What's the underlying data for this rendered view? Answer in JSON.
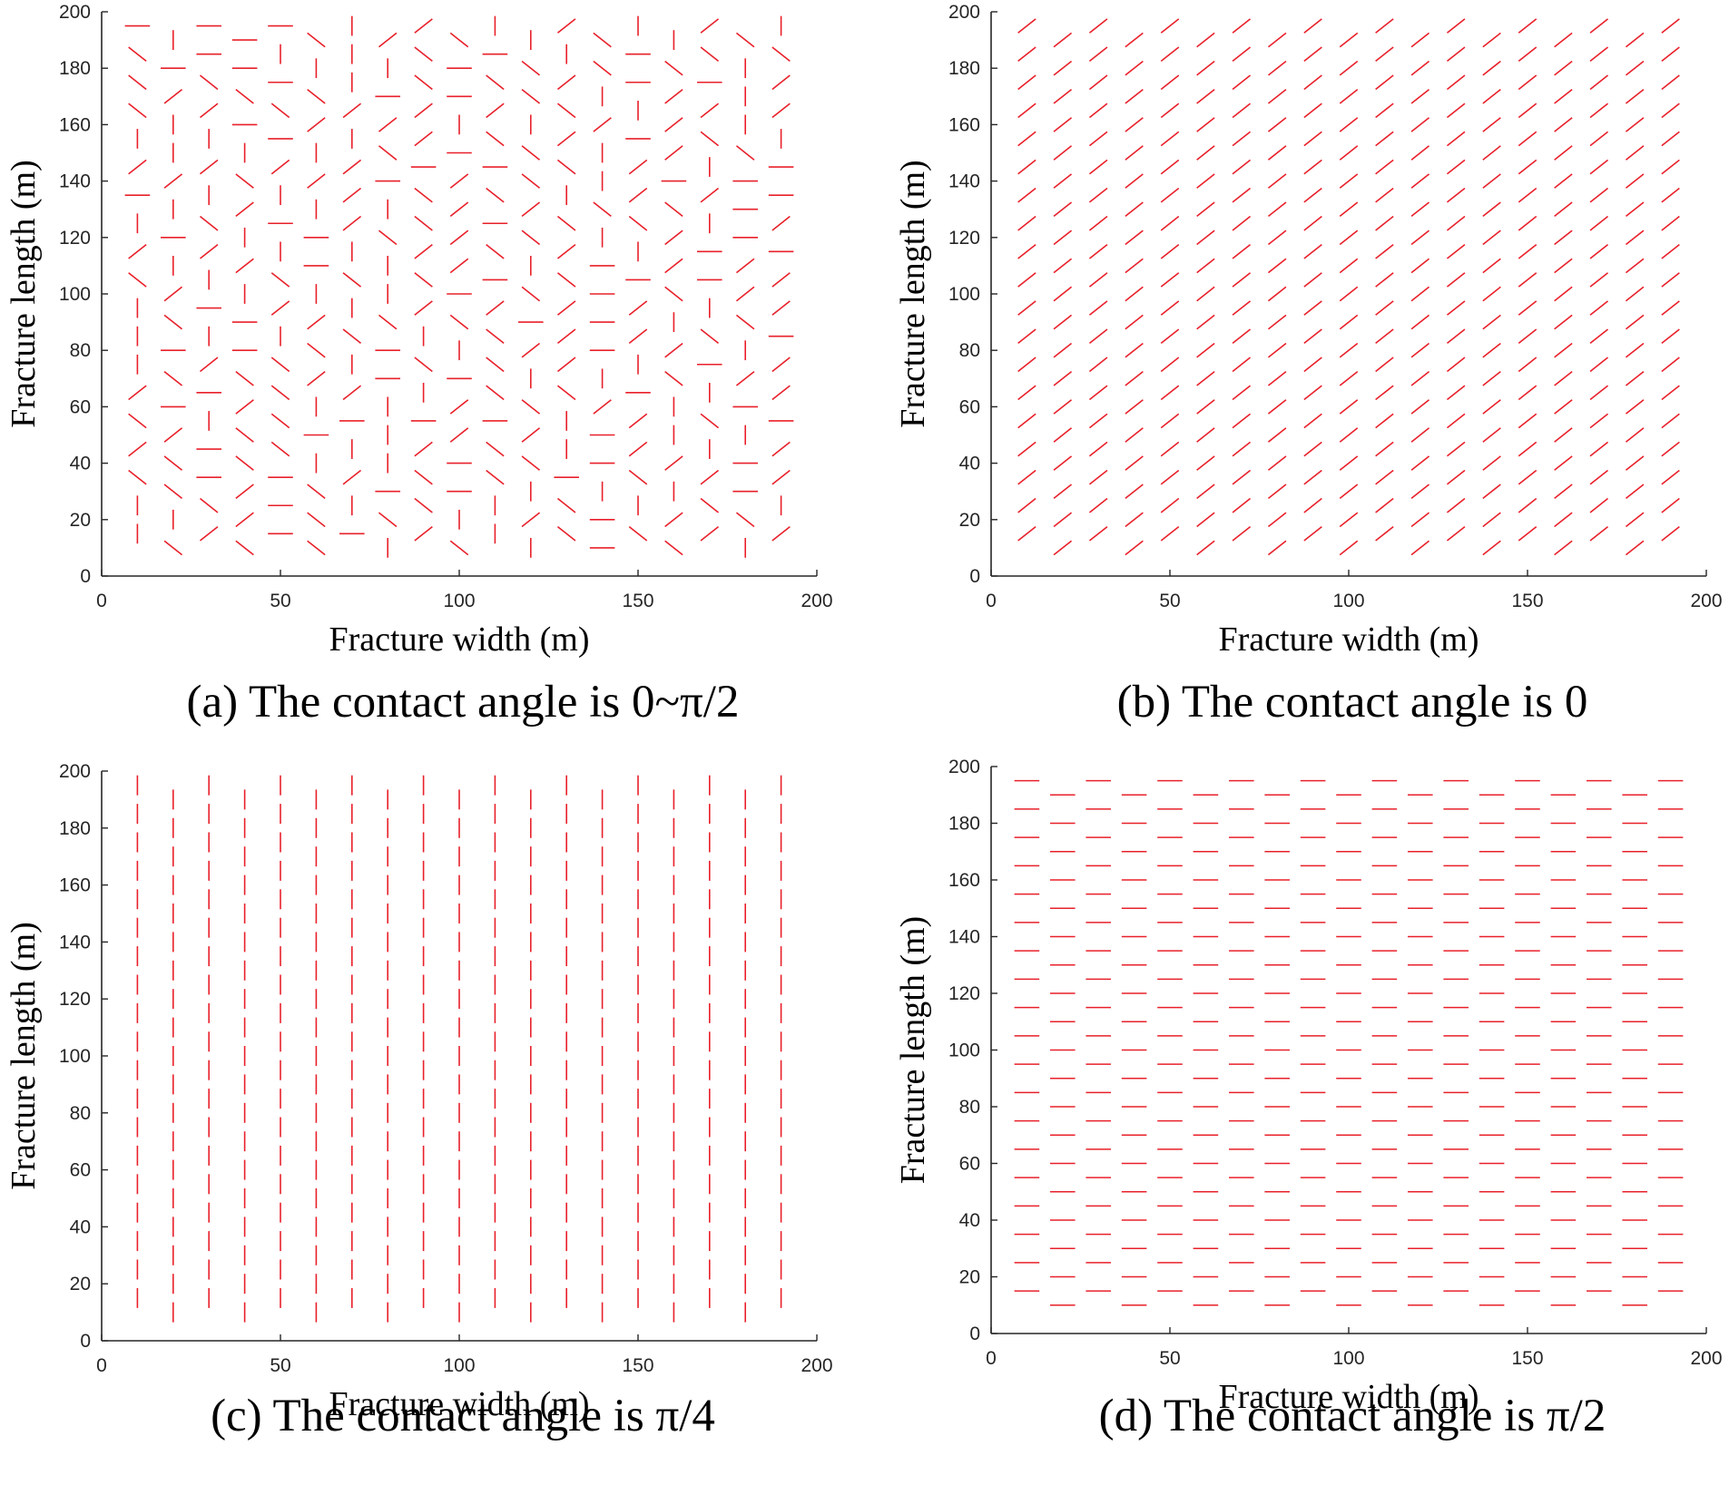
{
  "chart_data": [
    {
      "type": "scatter",
      "panel": "a",
      "caption": "(a) The contact angle is 0~π/2",
      "xlabel": "Fracture width (m)",
      "ylabel": "Fracture length (m)",
      "xlim": [
        0,
        200
      ],
      "ylim": [
        0,
        200
      ],
      "x_ticks": [
        "0",
        "50",
        "100",
        "150",
        "200"
      ],
      "y_ticks": [
        "0",
        "20",
        "40",
        "60",
        "80",
        "100",
        "120",
        "140",
        "160",
        "180",
        "200"
      ],
      "marker_color": "#e8202a",
      "fracture_half_length_m": 3.5,
      "column_x": [
        10,
        20,
        30,
        40,
        50,
        60,
        70,
        80,
        90,
        100,
        110,
        120,
        130,
        140,
        150,
        160,
        170,
        180,
        190
      ],
      "row_y": [
        10,
        15,
        20,
        25,
        30,
        35,
        40,
        45,
        50,
        55,
        60,
        65,
        70,
        75,
        80,
        85,
        90,
        95,
        100,
        105,
        110,
        115,
        120,
        125,
        130,
        135,
        140,
        145,
        150,
        155,
        160,
        165,
        170,
        175,
        180,
        185,
        190,
        195
      ],
      "orientation": "random",
      "orientation_set_deg": [
        0,
        45,
        90,
        135
      ]
    },
    {
      "type": "scatter",
      "panel": "b",
      "caption": "(b) The contact angle is 0",
      "xlabel": "Fracture width (m)",
      "ylabel": "Fracture length (m)",
      "xlim": [
        0,
        200
      ],
      "ylim": [
        0,
        200
      ],
      "x_ticks": [
        "0",
        "50",
        "100",
        "150",
        "200"
      ],
      "y_ticks": [
        "0",
        "20",
        "40",
        "60",
        "80",
        "100",
        "120",
        "140",
        "160",
        "180",
        "200"
      ],
      "marker_color": "#e8202a",
      "fracture_half_length_m": 3.5,
      "column_x": [
        10,
        20,
        30,
        40,
        50,
        60,
        70,
        80,
        90,
        100,
        110,
        120,
        130,
        140,
        150,
        160,
        170,
        180,
        190
      ],
      "row_y": [
        10,
        15,
        20,
        25,
        30,
        35,
        40,
        45,
        50,
        55,
        60,
        65,
        70,
        75,
        80,
        85,
        90,
        95,
        100,
        105,
        110,
        115,
        120,
        125,
        130,
        135,
        140,
        145,
        150,
        155,
        160,
        165,
        170,
        175,
        180,
        185,
        190,
        195
      ],
      "orientation": "uniform",
      "orientation_deg": 45
    },
    {
      "type": "scatter",
      "panel": "c",
      "caption": "(c) The contact angle is π/4",
      "xlabel": "Fracture width (m)",
      "ylabel": "Fracture length (m)",
      "xlim": [
        0,
        200
      ],
      "ylim": [
        0,
        200
      ],
      "x_ticks": [
        "0",
        "50",
        "100",
        "150",
        "200"
      ],
      "y_ticks": [
        "0",
        "20",
        "40",
        "60",
        "80",
        "100",
        "120",
        "140",
        "160",
        "180",
        "200"
      ],
      "marker_color": "#e8202a",
      "fracture_half_length_m": 3.5,
      "column_x": [
        10,
        20,
        30,
        40,
        50,
        60,
        70,
        80,
        90,
        100,
        110,
        120,
        130,
        140,
        150,
        160,
        170,
        180,
        190
      ],
      "row_y": [
        10,
        15,
        20,
        25,
        30,
        35,
        40,
        45,
        50,
        55,
        60,
        65,
        70,
        75,
        80,
        85,
        90,
        95,
        100,
        105,
        110,
        115,
        120,
        125,
        130,
        135,
        140,
        145,
        150,
        155,
        160,
        165,
        170,
        175,
        180,
        185,
        190,
        195
      ],
      "orientation": "uniform",
      "orientation_deg": 90
    },
    {
      "type": "scatter",
      "panel": "d",
      "caption": "(d) The contact angle is π/2",
      "xlabel": "Fracture width (m)",
      "ylabel": "Fracture length (m)",
      "xlim": [
        0,
        200
      ],
      "ylim": [
        0,
        200
      ],
      "x_ticks": [
        "0",
        "50",
        "100",
        "150",
        "200"
      ],
      "y_ticks": [
        "0",
        "20",
        "40",
        "60",
        "80",
        "100",
        "120",
        "140",
        "160",
        "180",
        "200"
      ],
      "marker_color": "#e8202a",
      "fracture_half_length_m": 3.5,
      "column_x": [
        10,
        20,
        30,
        40,
        50,
        60,
        70,
        80,
        90,
        100,
        110,
        120,
        130,
        140,
        150,
        160,
        170,
        180,
        190
      ],
      "row_y": [
        10,
        15,
        20,
        25,
        30,
        35,
        40,
        45,
        50,
        55,
        60,
        65,
        70,
        75,
        80,
        85,
        90,
        95,
        100,
        105,
        110,
        115,
        120,
        125,
        130,
        135,
        140,
        145,
        150,
        155,
        160,
        165,
        170,
        175,
        180,
        185,
        190,
        195
      ],
      "orientation": "uniform",
      "orientation_deg": 0
    }
  ]
}
